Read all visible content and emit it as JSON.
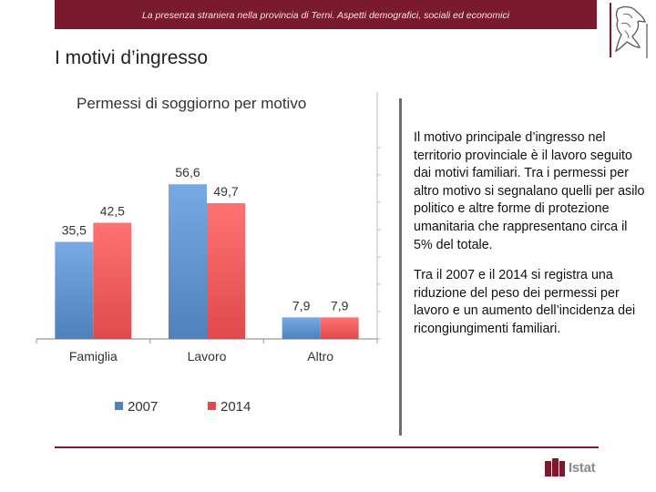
{
  "header": {
    "subtitle": "La presenza straniera nella provincia di Terni. Aspetti demografici, sociali ed economici"
  },
  "page": {
    "title": "I motivi d’ingresso"
  },
  "chart_data": {
    "type": "bar",
    "title": "Permessi di soggiorno  per motivo",
    "categories": [
      "Famiglia",
      "Lavoro",
      "Altro"
    ],
    "series": [
      {
        "name": "2007",
        "values": [
          35.5,
          56.6,
          7.9
        ],
        "labels": [
          "35,5",
          "56,6",
          "7,9"
        ],
        "color": "#4f81bd"
      },
      {
        "name": "2014",
        "values": [
          42.5,
          49.7,
          7.9
        ],
        "labels": [
          "42,5",
          "49,7",
          "7,9"
        ],
        "color": "#e04a4a"
      }
    ],
    "ylim": [
      0,
      70
    ],
    "legend_position": "bottom"
  },
  "text": {
    "paragraph1": "Il motivo principale d’ingresso nel territorio provinciale è il lavoro seguito dai motivi familiari. Tra i permessi per altro motivo si segnalano quelli per asilo politico e altre forme di protezione umanitaria che rappresentano circa il 5% del totale.",
    "paragraph2": "Tra il 2007 e il 2014 si registra una riduzione del peso dei permessi per lavoro e un aumento dell’incidenza dei ricongiungimenti familiari."
  },
  "footer": {
    "brand": "Istat"
  },
  "colors": {
    "brand": "#7a1a2e"
  }
}
